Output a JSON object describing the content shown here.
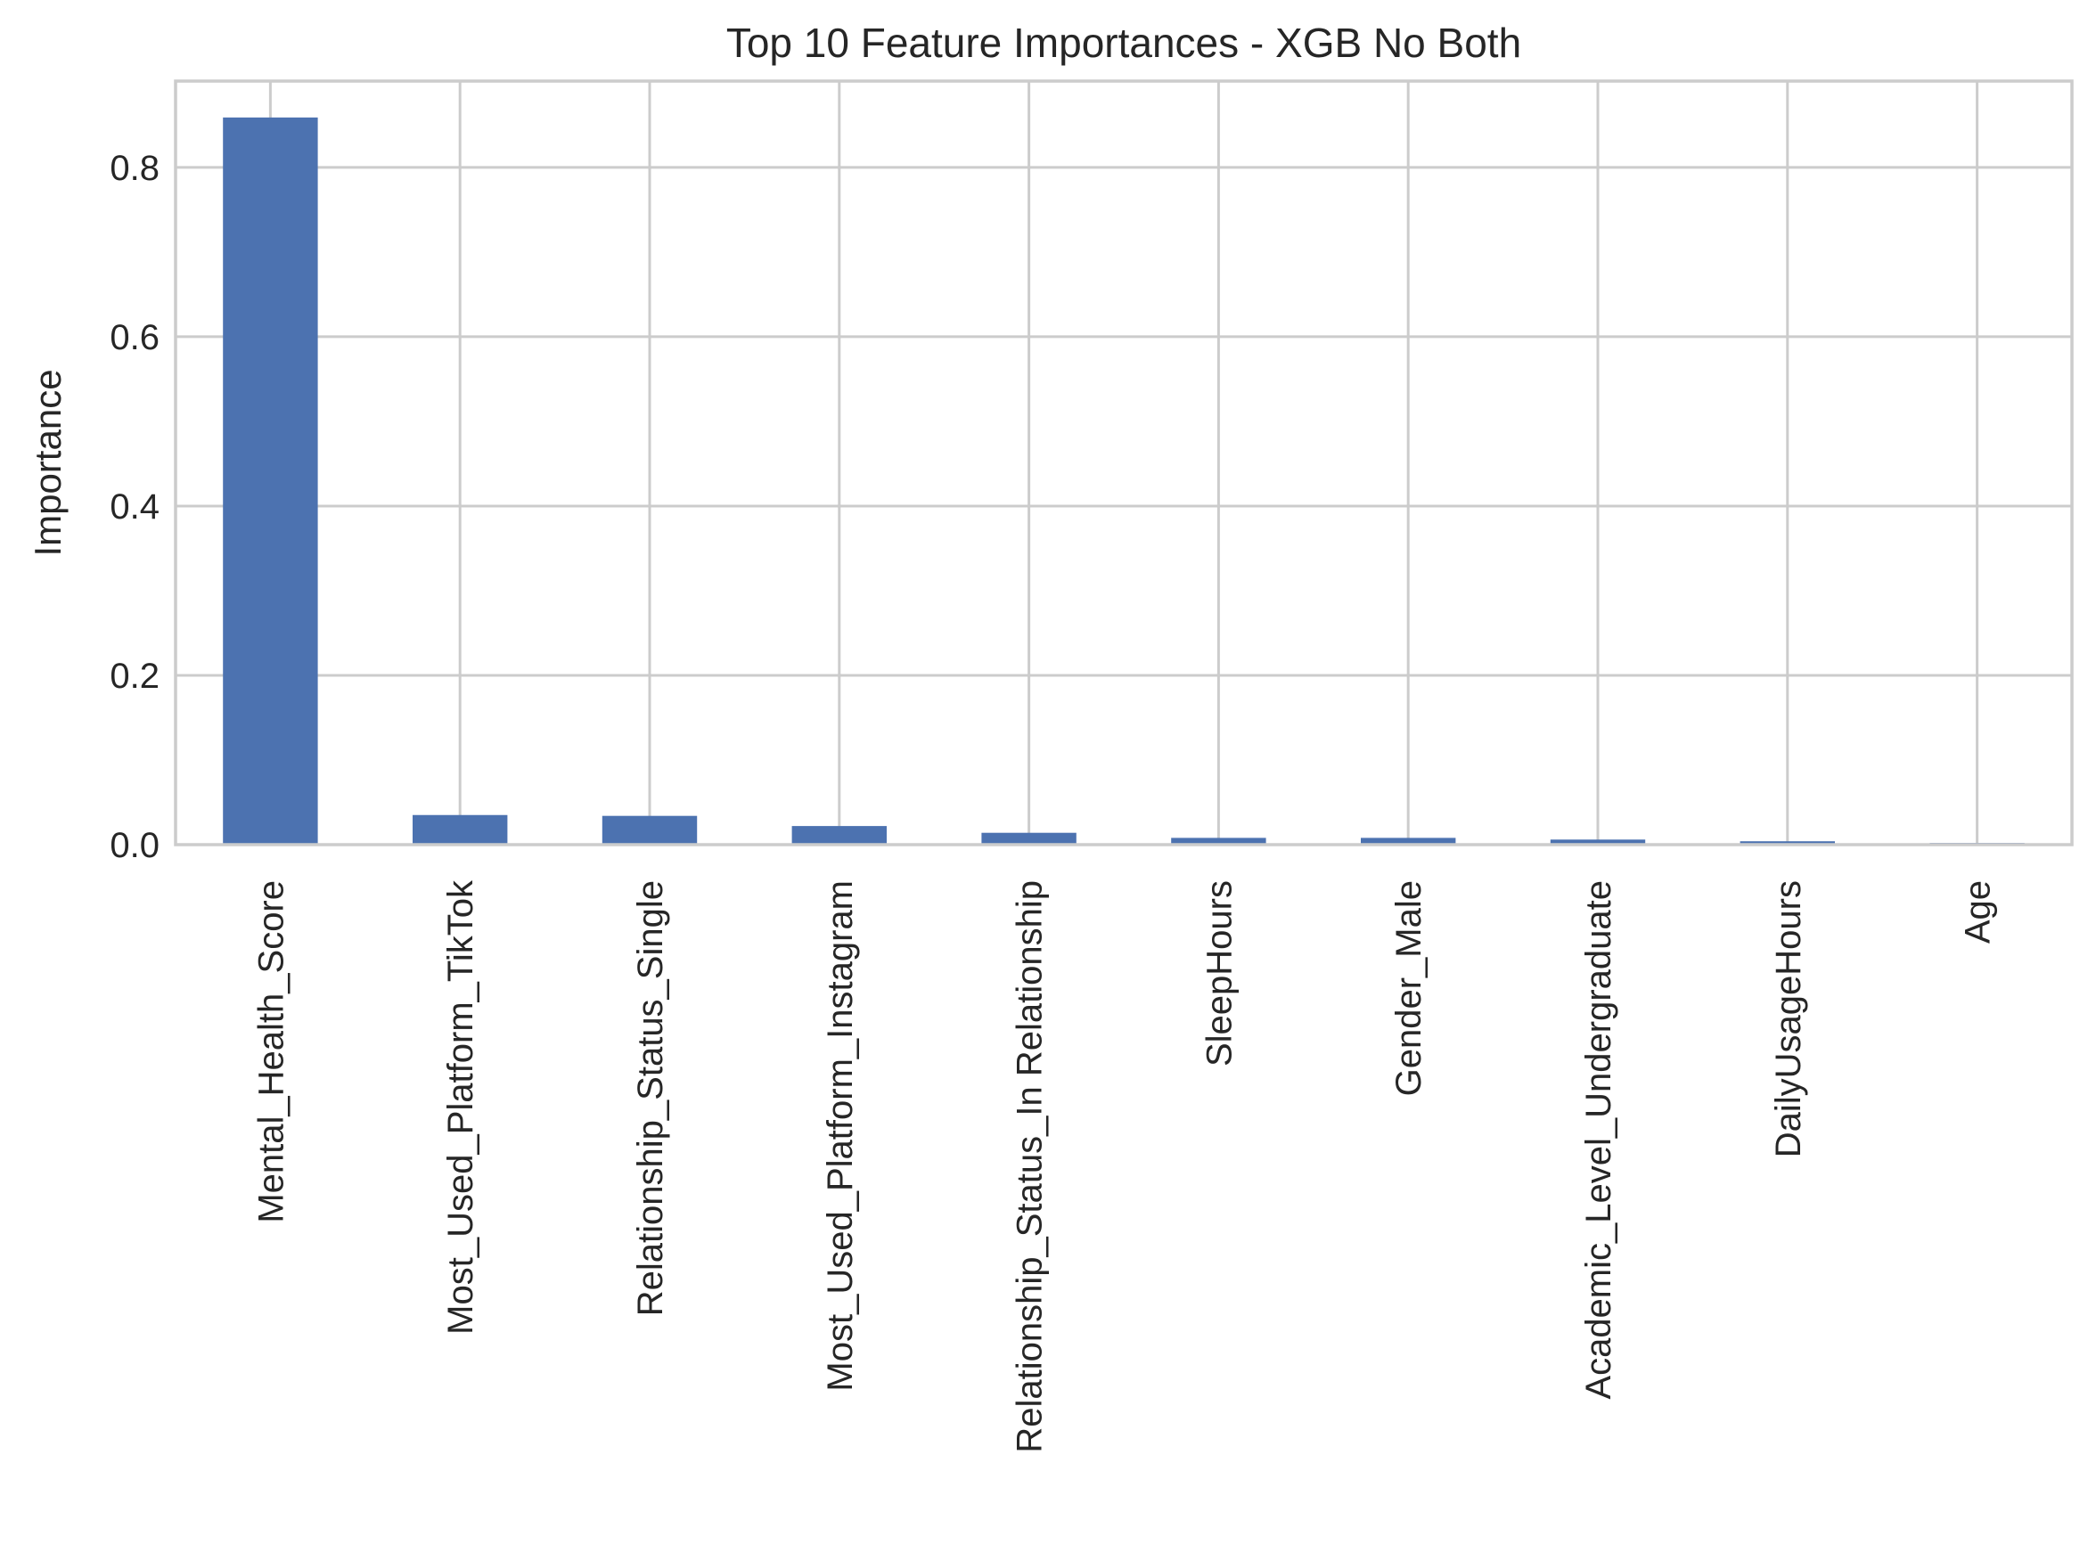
{
  "chart_data": {
    "type": "bar",
    "title": "Top 10 Feature Importances - XGB No Both",
    "xlabel": "",
    "ylabel": "Importance",
    "categories": [
      "Mental_Health_Score",
      "Most_Used_Platform_TikTok",
      "Relationship_Status_Single",
      "Most_Used_Platform_Instagram",
      "Relationship_Status_In Relationship",
      "SleepHours",
      "Gender_Male",
      "Academic_Level_Undergraduate",
      "DailyUsageHours",
      "Age"
    ],
    "values": [
      0.859,
      0.035,
      0.034,
      0.022,
      0.014,
      0.008,
      0.008,
      0.006,
      0.004,
      0.002
    ],
    "yticks": [
      0.0,
      0.2,
      0.4,
      0.6,
      0.8
    ],
    "ytick_labels": [
      "0.0",
      "0.2",
      "0.4",
      "0.6",
      "0.8"
    ],
    "ylim": [
      0.0,
      0.902
    ],
    "grid": true,
    "legend": "none",
    "bar_color": "#4c72b0",
    "grid_color": "#cccccc",
    "text_color": "#262626"
  }
}
